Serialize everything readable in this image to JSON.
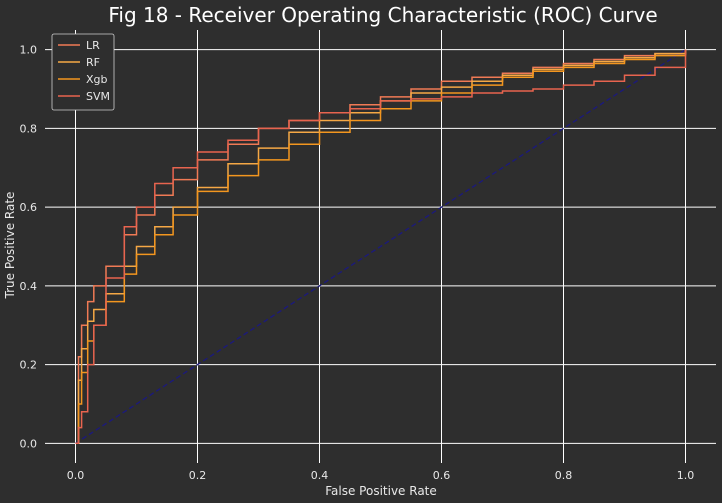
{
  "chart_data": {
    "type": "line",
    "title": "Fig 18 - Receiver Operating Characteristic (ROC) Curve",
    "xlabel": "False Positive Rate",
    "ylabel": "True Positive Rate",
    "xlim": [
      -0.05,
      1.05
    ],
    "ylim": [
      -0.05,
      1.05
    ],
    "xticks": [
      "0.0",
      "0.2",
      "0.4",
      "0.6",
      "0.8",
      "1.0"
    ],
    "yticks": [
      "0.0",
      "0.2",
      "0.4",
      "0.6",
      "0.8",
      "1.0"
    ],
    "grid": true,
    "legend_position": "top-left",
    "background": "#2e2e2e",
    "grid_color": "#ffffff",
    "series": [
      {
        "name": "LR",
        "color": "#f07a55",
        "x": [
          0,
          0.005,
          0.01,
          0.02,
          0.03,
          0.05,
          0.08,
          0.1,
          0.13,
          0.16,
          0.2,
          0.25,
          0.3,
          0.35,
          0.4,
          0.45,
          0.5,
          0.55,
          0.6,
          0.65,
          0.7,
          0.75,
          0.8,
          0.85,
          0.9,
          0.95,
          1.0
        ],
        "y": [
          0,
          0.22,
          0.3,
          0.36,
          0.4,
          0.45,
          0.53,
          0.58,
          0.63,
          0.67,
          0.72,
          0.76,
          0.8,
          0.82,
          0.84,
          0.86,
          0.88,
          0.9,
          0.92,
          0.93,
          0.94,
          0.955,
          0.965,
          0.975,
          0.985,
          0.99,
          1.0
        ]
      },
      {
        "name": "RF",
        "color": "#f5a845",
        "x": [
          0,
          0.005,
          0.01,
          0.02,
          0.03,
          0.05,
          0.08,
          0.1,
          0.13,
          0.16,
          0.2,
          0.25,
          0.3,
          0.35,
          0.4,
          0.45,
          0.5,
          0.55,
          0.6,
          0.65,
          0.7,
          0.75,
          0.8,
          0.85,
          0.9,
          0.95,
          1.0
        ],
        "y": [
          0,
          0.16,
          0.24,
          0.31,
          0.34,
          0.38,
          0.45,
          0.5,
          0.55,
          0.6,
          0.65,
          0.71,
          0.75,
          0.79,
          0.82,
          0.84,
          0.87,
          0.89,
          0.905,
          0.92,
          0.935,
          0.95,
          0.96,
          0.97,
          0.98,
          0.99,
          1.0
        ]
      },
      {
        "name": "Xgb",
        "color": "#f3961f",
        "x": [
          0,
          0.005,
          0.01,
          0.02,
          0.03,
          0.05,
          0.08,
          0.1,
          0.13,
          0.16,
          0.2,
          0.25,
          0.3,
          0.35,
          0.4,
          0.45,
          0.5,
          0.55,
          0.6,
          0.65,
          0.7,
          0.75,
          0.8,
          0.85,
          0.9,
          0.95,
          1.0
        ],
        "y": [
          0,
          0.1,
          0.18,
          0.26,
          0.3,
          0.36,
          0.43,
          0.48,
          0.53,
          0.58,
          0.64,
          0.68,
          0.72,
          0.76,
          0.79,
          0.82,
          0.85,
          0.87,
          0.89,
          0.91,
          0.93,
          0.945,
          0.955,
          0.965,
          0.975,
          0.985,
          1.0
        ]
      },
      {
        "name": "SVM",
        "color": "#e8644f",
        "x": [
          0,
          0.005,
          0.01,
          0.02,
          0.03,
          0.05,
          0.08,
          0.1,
          0.13,
          0.16,
          0.2,
          0.25,
          0.3,
          0.35,
          0.4,
          0.45,
          0.5,
          0.55,
          0.6,
          0.65,
          0.7,
          0.75,
          0.8,
          0.85,
          0.9,
          0.95,
          1.0
        ],
        "y": [
          0,
          0.04,
          0.08,
          0.2,
          0.3,
          0.42,
          0.55,
          0.6,
          0.66,
          0.7,
          0.74,
          0.77,
          0.8,
          0.82,
          0.84,
          0.85,
          0.87,
          0.875,
          0.88,
          0.89,
          0.895,
          0.9,
          0.91,
          0.92,
          0.935,
          0.955,
          1.0
        ]
      }
    ],
    "reference_line": {
      "x": [
        0,
        1
      ],
      "y": [
        0,
        1
      ],
      "color": "#1c1a7a",
      "style": "dashed"
    }
  }
}
